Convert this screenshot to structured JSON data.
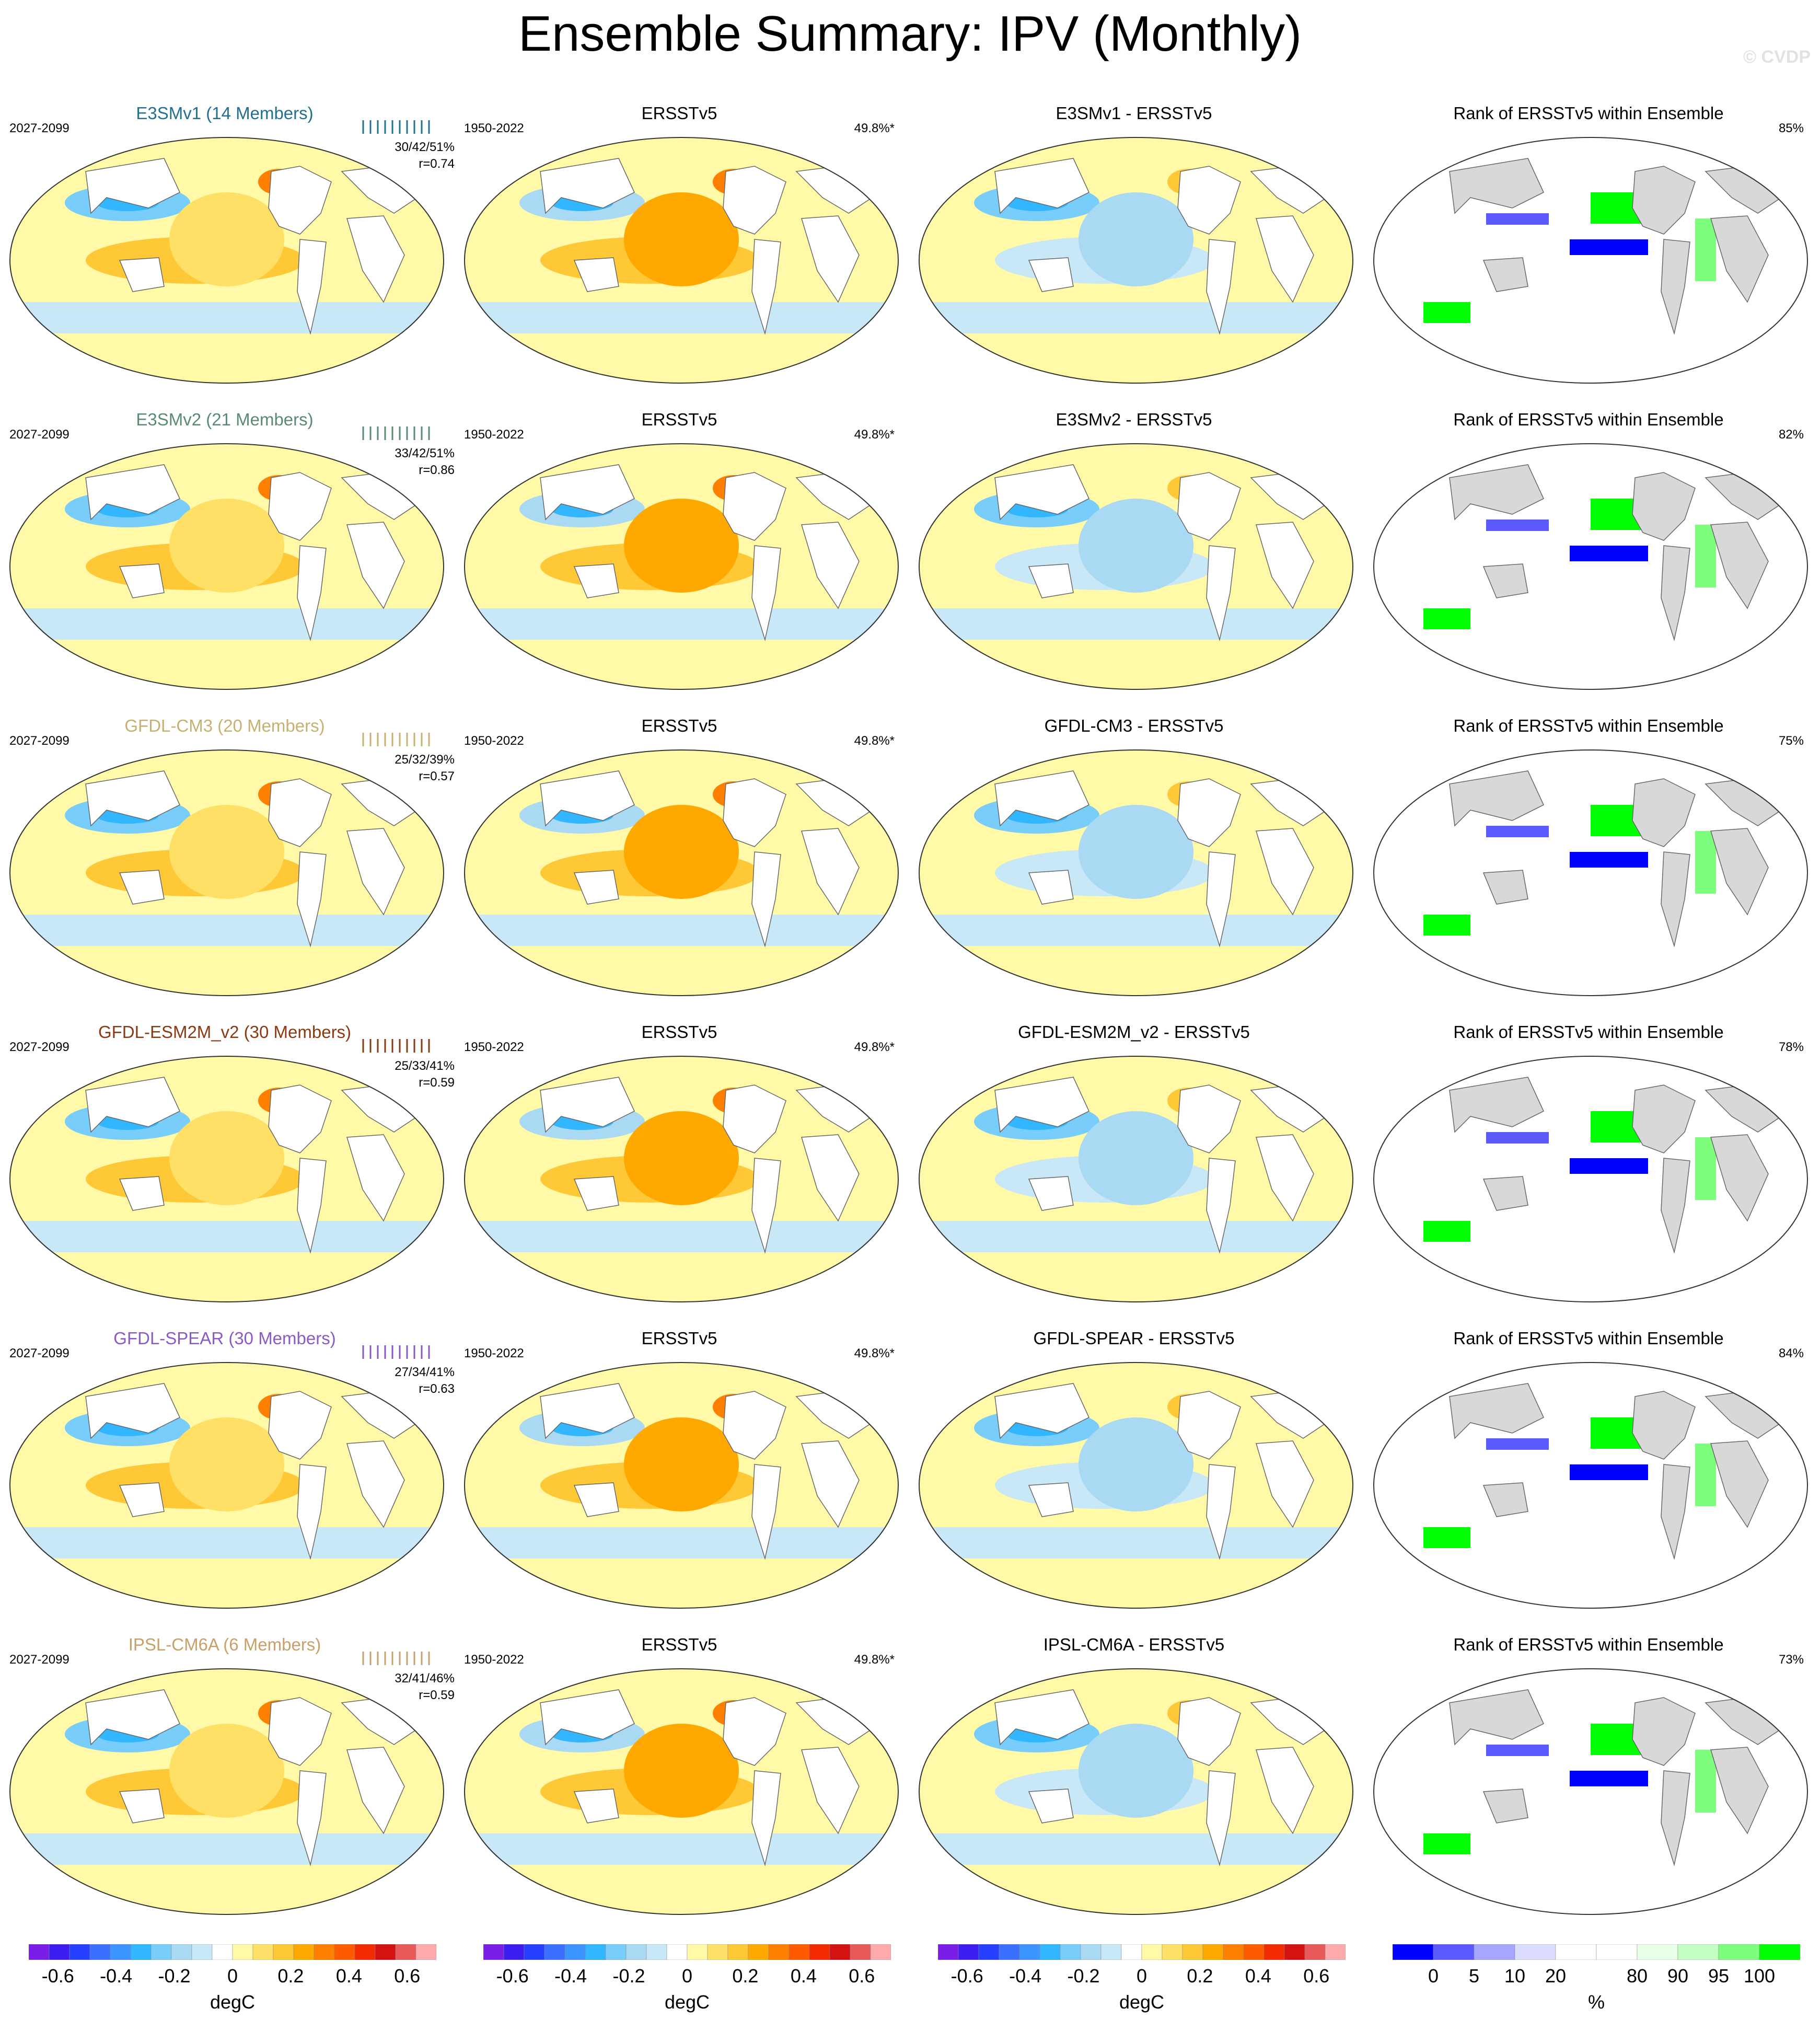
{
  "title": "Ensemble Summary: IPV (Monthly)",
  "copyright": "© CVDP",
  "observation": {
    "name": "ERSSTv5",
    "period": "1950-2022",
    "pct": "49.8%*"
  },
  "model_period": "2027-2099",
  "rank_title": "Rank of ERSSTv5 within Ensemble",
  "colors": {
    "diverging": [
      "#7a1de6",
      "#3d1ef0",
      "#2540ff",
      "#3a6fff",
      "#3d96ff",
      "#31b6ff",
      "#78cdfb",
      "#aad9f3",
      "#c8e7f7",
      "#ffffff",
      "#fff9a8",
      "#ffe066",
      "#ffc836",
      "#ffa800",
      "#ff8000",
      "#ff5a00",
      "#f32b00",
      "#d41212",
      "#e85a5a",
      "#ffaaaa"
    ],
    "rank": [
      "#0000ff",
      "#5a5aff",
      "#a6a6ff",
      "#dcdcff",
      "#ffffff",
      "#ffffff",
      "#e8ffe8",
      "#c4ffc4",
      "#7dff7d",
      "#00ff00"
    ],
    "land": "#d8d8d8"
  },
  "rows": [
    {
      "model": "E3SMv1 (14 Members)",
      "color": "#207090",
      "stats": "30/42/51%",
      "r": "r=0.74",
      "diff_title": "E3SMv1 - ERSSTv5",
      "rank_pct": "85%"
    },
    {
      "model": "E3SMv2 (21 Members)",
      "color": "#5a8a70",
      "stats": "33/42/51%",
      "r": "r=0.86",
      "diff_title": "E3SMv2 - ERSSTv5",
      "rank_pct": "82%"
    },
    {
      "model": "GFDL-CM3 (20 Members)",
      "color": "#c8b070",
      "stats": "25/32/39%",
      "r": "r=0.57",
      "diff_title": "GFDL-CM3 - ERSSTv5",
      "rank_pct": "75%"
    },
    {
      "model": "GFDL-ESM2M_v2 (30 Members)",
      "color": "#8a3a10",
      "stats": "25/33/41%",
      "r": "r=0.59",
      "diff_title": "GFDL-ESM2M_v2 - ERSSTv5",
      "rank_pct": "78%"
    },
    {
      "model": "GFDL-SPEAR (30 Members)",
      "color": "#8a5ac8",
      "stats": "27/34/41%",
      "r": "r=0.63",
      "diff_title": "GFDL-SPEAR - ERSSTv5",
      "rank_pct": "84%"
    },
    {
      "model": "IPSL-CM6A (6 Members)",
      "color": "#c8a068",
      "stats": "32/41/46%",
      "r": "r=0.59",
      "diff_title": "IPSL-CM6A - ERSSTv5",
      "rank_pct": "73%"
    }
  ],
  "colorbar": {
    "ticks": [
      "-0.6",
      "-0.4",
      "-0.2",
      "0",
      "0.2",
      "0.4",
      "0.6"
    ],
    "label": "degC"
  },
  "rank_colorbar": {
    "ticks": [
      "0",
      "5",
      "10",
      "20",
      "80",
      "90",
      "95",
      "100"
    ],
    "label": "%"
  }
}
